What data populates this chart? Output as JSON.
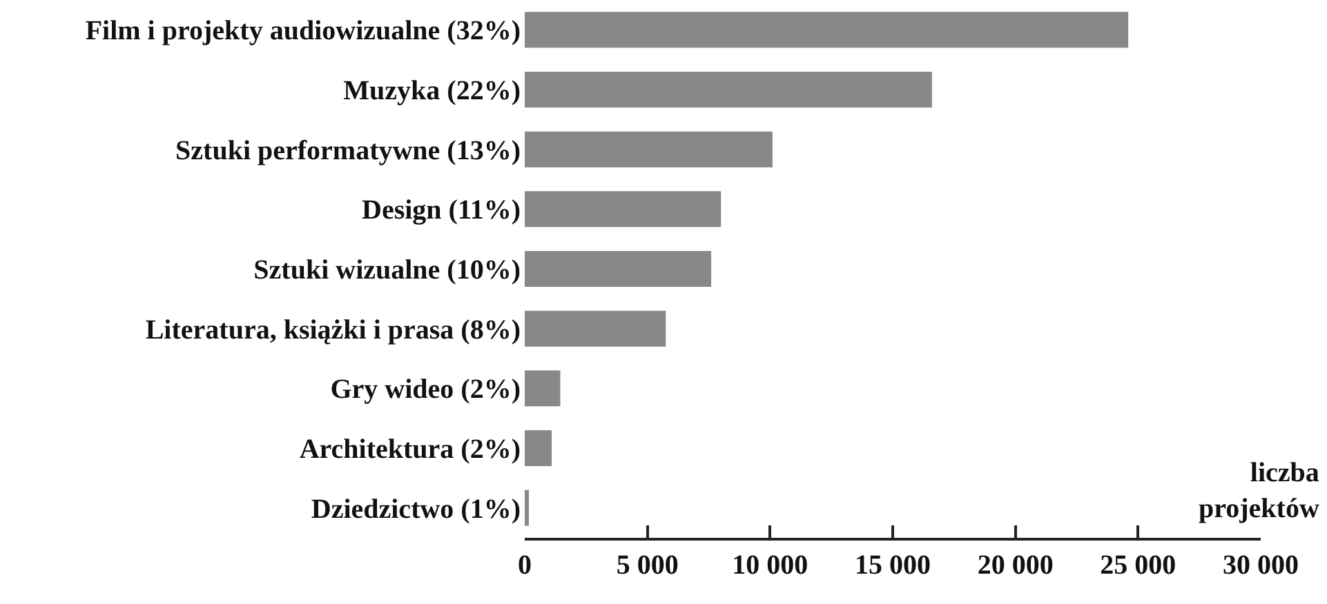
{
  "chart_data": {
    "type": "bar",
    "orientation": "horizontal",
    "xlabel": "liczba\nprojektów",
    "categories": [
      "Film i projekty audiowizualne (32%)",
      "Muzyka (22%)",
      "Sztuki performatywne (13%)",
      "Design (11%)",
      "Sztuki wizualne (10%)",
      "Literatura, książki i prasa (8%)",
      "Gry wideo (2%)",
      "Architektura (2%)",
      "Dziedzictwo (1%)"
    ],
    "values": [
      24600,
      16600,
      10100,
      8000,
      7600,
      5750,
      1450,
      1100,
      170
    ],
    "color": "#888888",
    "xlim": [
      0,
      30000
    ],
    "xticks": [
      0,
      {
        "value": 5000,
        "label": "5 000"
      },
      {
        "value": 10000,
        "label": "10 000"
      },
      {
        "value": 15000,
        "label": "15 000"
      },
      {
        "value": 20000,
        "label": "20 000"
      },
      {
        "value": 25000,
        "label": "25 000"
      },
      {
        "value": 30000,
        "label": "30 000"
      }
    ],
    "tick_labels": true
  }
}
